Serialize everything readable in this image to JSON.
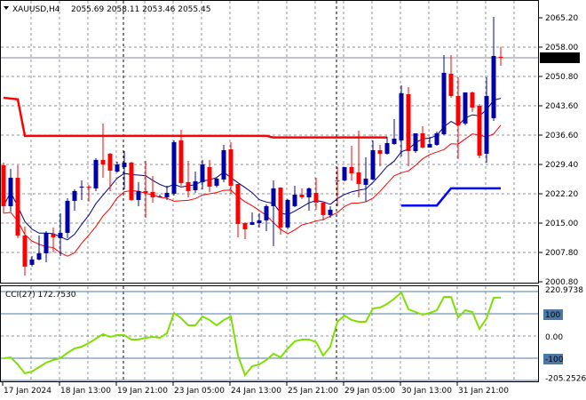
{
  "header": {
    "symbol": "XAUUSD,H4",
    "ohlc": "2055.69 2058.11 2053.46 2055.45"
  },
  "colors": {
    "bull": "#0000a8",
    "bear": "#ff0000",
    "cci": "#7fe000",
    "level": "#4a78a8",
    "grid": "#8a96a0"
  },
  "chart_data": [
    {
      "type": "candlestick",
      "title": "XAUUSD,H4",
      "ylim": [
        2000.8,
        2065.2
      ],
      "y_ticks": [
        "2065.20",
        "2058.00",
        "2050.80",
        "2043.60",
        "2036.60",
        "2029.40",
        "2022.20",
        "2015.00",
        "2007.80",
        "2000.80"
      ],
      "current_price": "2055.45",
      "x_ticks": [
        "17 Jan 2024",
        "18 Jan 13:00",
        "19 Jan 21:00",
        "23 Jan 05:00",
        "24 Jan 13:00",
        "25 Jan 21:00",
        "29 Jan 05:00",
        "30 Jan 13:00",
        "31 Jan 21:00"
      ],
      "ohlc": [
        [
          2029.22,
          2029.87,
          2017.51,
          2019.24
        ],
        [
          2019.24,
          2028.35,
          2017.94,
          2026.18
        ],
        [
          2026.18,
          2029.22,
          2011.44,
          2012.09
        ],
        [
          2012.09,
          2014.26,
          2002.33,
          2004.5
        ],
        [
          2004.93,
          2007.1,
          2004.5,
          2006.23
        ],
        [
          2006.23,
          2012.09,
          2006.02,
          2007.75
        ],
        [
          2007.75,
          2013.17,
          2005.58,
          2012.74
        ],
        [
          2012.52,
          2014.04,
          2007.97,
          2011.65
        ],
        [
          2011.44,
          2017.51,
          2007.1,
          2012.74
        ],
        [
          2012.74,
          2021.19,
          2011.44,
          2020.54
        ],
        [
          2020.54,
          2023.36,
          2018.16,
          2022.93
        ],
        [
          2023.8,
          2025.53,
          2020.76,
          2024.01
        ],
        [
          2024.01,
          2024.45,
          2020.33,
          2023.8
        ],
        [
          2023.58,
          2030.95,
          2022.93,
          2030.52
        ],
        [
          2030.52,
          2039.4,
          2026.18,
          2029.43
        ],
        [
          2032.03,
          2032.25,
          2022.93,
          2027.91
        ],
        [
          2027.7,
          2030.08,
          2027.48,
          2029.43
        ],
        [
          2028.78,
          2032.68,
          2023.36,
          2029.87
        ],
        [
          2029.87,
          2030.08,
          2020.54,
          2020.76
        ],
        [
          2020.76,
          2025.1,
          2019.24,
          2022.93
        ],
        [
          2022.93,
          2030.3,
          2016.42,
          2022.49
        ],
        [
          2022.71,
          2026.61,
          2020.11,
          2021.41
        ],
        [
          2021.41,
          2022.06,
          2021.41,
          2021.63
        ],
        [
          2021.41,
          2024.23,
          2020.76,
          2022.49
        ],
        [
          2022.28,
          2035.29,
          2021.84,
          2034.85
        ],
        [
          2035.29,
          2037.89,
          2024.23,
          2024.88
        ],
        [
          2025.1,
          2030.3,
          2021.41,
          2022.93
        ],
        [
          2023.14,
          2027.7,
          2022.49,
          2025.31
        ],
        [
          2025.1,
          2030.52,
          2023.36,
          2029.43
        ],
        [
          2028.78,
          2030.52,
          2022.71,
          2024.01
        ],
        [
          2024.23,
          2026.18,
          2023.8,
          2025.96
        ],
        [
          2025.75,
          2034.2,
          2025.1,
          2032.9
        ],
        [
          2033.12,
          2034.85,
          2022.28,
          2024.23
        ],
        [
          2024.66,
          2024.66,
          2011.65,
          2014.91
        ],
        [
          2015.12,
          2015.34,
          2011.22,
          2013.61
        ],
        [
          2014.69,
          2017.72,
          2014.69,
          2015.34
        ],
        [
          2015.12,
          2017.51,
          2014.04,
          2015.77
        ],
        [
          2015.77,
          2019.68,
          2013.17,
          2019.24
        ],
        [
          2019.24,
          2025.53,
          2009.49,
          2023.58
        ],
        [
          2023.8,
          2023.8,
          2012.3,
          2014.04
        ],
        [
          2014.04,
          2020.98,
          2013.61,
          2020.76
        ],
        [
          2019.24,
          2024.23,
          2019.03,
          2022.06
        ],
        [
          2022.06,
          2023.58,
          2020.98,
          2021.41
        ],
        [
          2021.41,
          2023.8,
          2018.16,
          2023.58
        ],
        [
          2022.49,
          2026.18,
          2018.38,
          2020.11
        ],
        [
          2020.11,
          2020.11,
          2015.77,
          2017.07
        ],
        [
          2017.07,
          2019.24,
          2016.42,
          2018.38
        ],
        [
          2025.53,
          2028.78,
          2019.24,
          2025.31
        ],
        [
          2025.53,
          2028.78,
          2025.31,
          2028.78
        ],
        [
          2028.78,
          2033.98,
          2025.53,
          2027.26
        ],
        [
          2027.48,
          2037.67,
          2021.41,
          2024.66
        ],
        [
          2024.45,
          2031.17,
          2020.33,
          2025.96
        ],
        [
          2025.75,
          2035.29,
          2025.53,
          2032.9
        ],
        [
          2032.9,
          2034.2,
          2029.0,
          2032.03
        ],
        [
          2032.03,
          2036.15,
          2031.82,
          2034.64
        ],
        [
          2034.42,
          2040.49,
          2034.2,
          2035.72
        ],
        [
          2035.29,
          2048.73,
          2031.38,
          2046.78
        ],
        [
          2046.56,
          2048.29,
          2029.0,
          2032.68
        ],
        [
          2032.68,
          2037.02,
          2032.25,
          2037.02
        ],
        [
          2037.02,
          2038.75,
          2033.33,
          2033.55
        ],
        [
          2033.55,
          2036.15,
          2033.55,
          2034.42
        ],
        [
          2034.2,
          2037.45,
          2033.98,
          2037.02
        ],
        [
          2036.8,
          2056.1,
          2036.59,
          2051.76
        ],
        [
          2051.55,
          2056.1,
          2045.69,
          2046.13
        ],
        [
          2046.13,
          2050.68,
          2030.73,
          2038.97
        ],
        [
          2039.4,
          2046.99,
          2038.97,
          2046.99
        ],
        [
          2046.99,
          2047.21,
          2042.22,
          2043.31
        ],
        [
          2043.74,
          2044.17,
          2030.95,
          2031.6
        ],
        [
          2032.03,
          2050.68,
          2029.87,
          2046.13
        ],
        [
          2040.71,
          2065.42,
          2040.06,
          2055.88
        ],
        [
          2055.69,
          2058.11,
          2053.46,
          2055.45
        ]
      ],
      "resistance_line": [
        [
          0,
          2045.7
        ],
        [
          2,
          2045.3
        ],
        [
          3,
          2036.4
        ],
        [
          37,
          2036.4
        ],
        [
          38,
          2036.0
        ],
        [
          54,
          2036.0
        ]
      ],
      "support_line": [
        [
          56,
          2019.4
        ],
        [
          61,
          2019.4
        ],
        [
          63,
          2023.6
        ],
        [
          70,
          2023.6
        ]
      ]
    },
    {
      "type": "line",
      "title": "CCI(27) 172.7530",
      "ylim": [
        -205.2526,
        220.9738
      ],
      "y_ticks": [
        "220.9738",
        "100",
        "0.00",
        "-100",
        "-205.2526"
      ],
      "levels": [
        200,
        100,
        -100,
        -200
      ],
      "values": [
        -100,
        -96,
        -128,
        -168,
        -160,
        -140,
        -120,
        -108,
        -100,
        -76,
        -56,
        -48,
        -32,
        -12,
        8,
        -4,
        4,
        4,
        -16,
        -16,
        -8,
        -4,
        -8,
        12,
        104,
        80,
        48,
        48,
        88,
        72,
        48,
        72,
        88,
        -88,
        -176,
        -136,
        -128,
        -108,
        -80,
        -96,
        -56,
        -24,
        -16,
        -16,
        -28,
        -88,
        -48,
        64,
        92,
        72,
        64,
        64,
        124,
        128,
        144,
        168,
        196,
        120,
        108,
        96,
        104,
        116,
        176,
        176,
        84,
        116,
        108,
        32,
        80,
        172,
        172.75
      ]
    }
  ]
}
